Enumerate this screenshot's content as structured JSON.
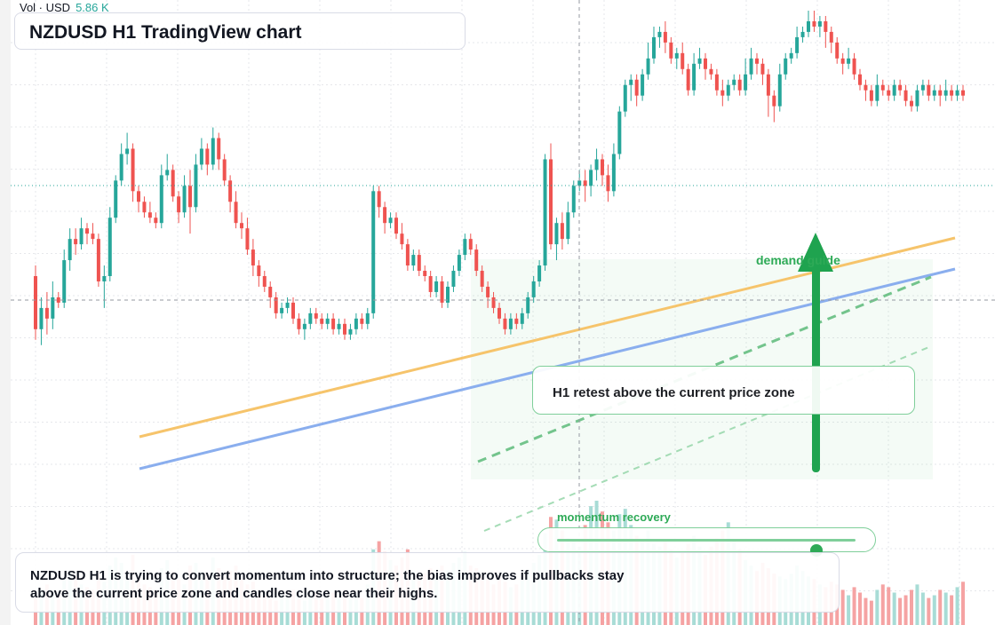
{
  "header": {
    "vol_label": "Vol · USD",
    "vol_value": "5.86 K",
    "title": "NZDUSD H1 TradingView chart"
  },
  "annotations": {
    "retest_label": "H1 retest above the current price zone",
    "demand_label": "demand guide",
    "momentum_label": "momentum recovery",
    "momentum_level": 0.87,
    "note": "NZDUSD H1 is trying to convert momentum into structure; the bias improves if pullbacks stay above the current price zone and candles close near their highs."
  },
  "colors": {
    "up": "#26a69a",
    "down": "#ef5350",
    "up_volume": "#a8dcd6",
    "down_volume": "#f5a3a3",
    "orange_trend": "#f6c46b",
    "blue_trend": "#8aaeee",
    "green_accent": "#2eaa57"
  },
  "chart_data": {
    "type": "candlestick",
    "ylim": [
      0,
      100
    ],
    "candles": [
      [
        50,
        40,
        52,
        38
      ],
      [
        40,
        44,
        46,
        37
      ],
      [
        44,
        42,
        47,
        39
      ],
      [
        42,
        46,
        49,
        40
      ],
      [
        46,
        45,
        47,
        44
      ],
      [
        45,
        53,
        55,
        44
      ],
      [
        53,
        57,
        59,
        51
      ],
      [
        57,
        56,
        59,
        54
      ],
      [
        56,
        59,
        61,
        55
      ],
      [
        59,
        58,
        60,
        56
      ],
      [
        58,
        57,
        60,
        56
      ],
      [
        57,
        49,
        58,
        48
      ],
      [
        49,
        50,
        52,
        44
      ],
      [
        50,
        61,
        63,
        49
      ],
      [
        61,
        68,
        69,
        60
      ],
      [
        68,
        73,
        75,
        67
      ],
      [
        73,
        74,
        77,
        71
      ],
      [
        74,
        66,
        75,
        64
      ],
      [
        66,
        64,
        67,
        62
      ],
      [
        64,
        62,
        65,
        61
      ],
      [
        62,
        61,
        64,
        60
      ],
      [
        61,
        60,
        62,
        59
      ],
      [
        60,
        69,
        71,
        59
      ],
      [
        69,
        70,
        73,
        68
      ],
      [
        70,
        65,
        71,
        64
      ],
      [
        65,
        62,
        66,
        60
      ],
      [
        62,
        67,
        69,
        61
      ],
      [
        67,
        63,
        70,
        58
      ],
      [
        63,
        71,
        73,
        62
      ],
      [
        71,
        74,
        76,
        70
      ],
      [
        74,
        71,
        75,
        69
      ],
      [
        71,
        76,
        78,
        70
      ],
      [
        76,
        72,
        77,
        70
      ],
      [
        72,
        68,
        73,
        67
      ],
      [
        68,
        64,
        69,
        62
      ],
      [
        64,
        60,
        66,
        59
      ],
      [
        60,
        59,
        62,
        57
      ],
      [
        59,
        55,
        61,
        54
      ],
      [
        55,
        52,
        57,
        50
      ],
      [
        52,
        50,
        53,
        48
      ],
      [
        50,
        48,
        51,
        47
      ],
      [
        48,
        46,
        49,
        44
      ],
      [
        46,
        43,
        47,
        42
      ],
      [
        43,
        44,
        45,
        42
      ],
      [
        44,
        45,
        46,
        43
      ],
      [
        45,
        42,
        46,
        41
      ],
      [
        42,
        40,
        43,
        39
      ],
      [
        40,
        41,
        42,
        38
      ],
      [
        41,
        43,
        44,
        40
      ],
      [
        43,
        42,
        44,
        41
      ],
      [
        42,
        41,
        43,
        40
      ],
      [
        41,
        42,
        43,
        40
      ],
      [
        42,
        40,
        43,
        39
      ],
      [
        40,
        41,
        42,
        39
      ],
      [
        41,
        39,
        42,
        38
      ],
      [
        39,
        40,
        41,
        38
      ],
      [
        40,
        42,
        43,
        39
      ],
      [
        42,
        41,
        43,
        40
      ],
      [
        41,
        43,
        44,
        40
      ],
      [
        43,
        66,
        67,
        42
      ],
      [
        66,
        63,
        67,
        61
      ],
      [
        63,
        60,
        64,
        58
      ],
      [
        60,
        61,
        62,
        59
      ],
      [
        61,
        58,
        62,
        57
      ],
      [
        58,
        56,
        60,
        55
      ],
      [
        56,
        52,
        57,
        51
      ],
      [
        52,
        54,
        55,
        51
      ],
      [
        54,
        51,
        55,
        50
      ],
      [
        51,
        50,
        52,
        49
      ],
      [
        50,
        47,
        51,
        46
      ],
      [
        47,
        49,
        50,
        46
      ],
      [
        49,
        45,
        50,
        44
      ],
      [
        45,
        48,
        49,
        44
      ],
      [
        48,
        51,
        52,
        47
      ],
      [
        51,
        54,
        55,
        50
      ],
      [
        54,
        57,
        58,
        53
      ],
      [
        57,
        55,
        58,
        54
      ],
      [
        55,
        51,
        56,
        50
      ],
      [
        51,
        48,
        52,
        47
      ],
      [
        48,
        46,
        49,
        44
      ],
      [
        46,
        44,
        47,
        43
      ],
      [
        44,
        42,
        45,
        41
      ],
      [
        42,
        40,
        43,
        39
      ],
      [
        40,
        42,
        43,
        39
      ],
      [
        42,
        41,
        43,
        40
      ],
      [
        41,
        43,
        44,
        40
      ],
      [
        43,
        46,
        47,
        42
      ],
      [
        46,
        49,
        50,
        45
      ],
      [
        49,
        52,
        53,
        48
      ],
      [
        52,
        72,
        73,
        51
      ],
      [
        72,
        56,
        75,
        55
      ],
      [
        56,
        60,
        61,
        53
      ],
      [
        60,
        57,
        62,
        55
      ],
      [
        57,
        62,
        64,
        56
      ],
      [
        62,
        67,
        68,
        61
      ],
      [
        67,
        68,
        70,
        66
      ],
      [
        68,
        67,
        70,
        64
      ],
      [
        67,
        70,
        71,
        65
      ],
      [
        70,
        72,
        74,
        68
      ],
      [
        72,
        69,
        73,
        67
      ],
      [
        69,
        66,
        71,
        64
      ],
      [
        66,
        73,
        75,
        65
      ],
      [
        73,
        81,
        82,
        72
      ],
      [
        81,
        86,
        87,
        80
      ],
      [
        86,
        87,
        88,
        83
      ],
      [
        87,
        84,
        88,
        82
      ],
      [
        84,
        88,
        89,
        83
      ],
      [
        88,
        91,
        94,
        87
      ],
      [
        91,
        95,
        97,
        90
      ],
      [
        95,
        96,
        97,
        93
      ],
      [
        96,
        94,
        98,
        92
      ],
      [
        94,
        91,
        95,
        90
      ],
      [
        91,
        92,
        93,
        89
      ],
      [
        92,
        89,
        94,
        88
      ],
      [
        89,
        85,
        90,
        84
      ],
      [
        85,
        90,
        92,
        84
      ],
      [
        90,
        91,
        93,
        89
      ],
      [
        91,
        89,
        92,
        87
      ],
      [
        89,
        88,
        90,
        87
      ],
      [
        88,
        85,
        89,
        84
      ],
      [
        85,
        84,
        87,
        82
      ],
      [
        84,
        86,
        87,
        83
      ],
      [
        86,
        87,
        88,
        85
      ],
      [
        87,
        85,
        88,
        84
      ],
      [
        85,
        88,
        91,
        84
      ],
      [
        88,
        91,
        93,
        87
      ],
      [
        91,
        90,
        92,
        88
      ],
      [
        90,
        88,
        91,
        86
      ],
      [
        88,
        84,
        89,
        80
      ],
      [
        84,
        82,
        85,
        79
      ],
      [
        82,
        88,
        90,
        81
      ],
      [
        88,
        91,
        92,
        87
      ],
      [
        91,
        92,
        93,
        90
      ],
      [
        92,
        95,
        97,
        91
      ],
      [
        95,
        96,
        97,
        94
      ],
      [
        96,
        98,
        100,
        95
      ],
      [
        98,
        97,
        100,
        96
      ],
      [
        97,
        98,
        99,
        95
      ],
      [
        98,
        96,
        99,
        93
      ],
      [
        96,
        94,
        97,
        92
      ],
      [
        94,
        91,
        95,
        90
      ],
      [
        91,
        90,
        92,
        88
      ],
      [
        90,
        91,
        93,
        89
      ],
      [
        91,
        88,
        92,
        87
      ],
      [
        88,
        86,
        89,
        85
      ],
      [
        86,
        85,
        87,
        83
      ],
      [
        85,
        83,
        86,
        82
      ],
      [
        83,
        86,
        88,
        82
      ],
      [
        86,
        85,
        87,
        84
      ],
      [
        85,
        84,
        86,
        83
      ],
      [
        84,
        86,
        87,
        83
      ],
      [
        86,
        85,
        87,
        84
      ],
      [
        85,
        83,
        86,
        82
      ],
      [
        83,
        82,
        84,
        81
      ],
      [
        82,
        85,
        86,
        81
      ],
      [
        85,
        86,
        87,
        84
      ],
      [
        86,
        84,
        87,
        83
      ],
      [
        84,
        85,
        86,
        83
      ],
      [
        85,
        84,
        86,
        82
      ],
      [
        84,
        85,
        87,
        83
      ],
      [
        85,
        84,
        86,
        83
      ],
      [
        84,
        85,
        86,
        83
      ],
      [
        85,
        84,
        86,
        83
      ]
    ],
    "volumes": [
      20,
      26,
      30,
      24,
      22,
      34,
      40,
      36,
      30,
      28,
      26,
      38,
      32,
      44,
      50,
      46,
      40,
      52,
      36,
      30,
      28,
      26,
      42,
      48,
      40,
      34,
      30,
      44,
      46,
      40,
      38,
      50,
      42,
      36,
      40,
      44,
      34,
      30,
      32,
      26,
      22,
      20,
      18,
      24,
      22,
      26,
      20,
      18,
      22,
      24,
      20,
      22,
      24,
      20,
      26,
      22,
      24,
      20,
      30,
      56,
      62,
      54,
      48,
      44,
      50,
      56,
      40,
      34,
      38,
      42,
      36,
      44,
      40,
      46,
      50,
      54,
      44,
      42,
      36,
      34,
      30,
      36,
      32,
      28,
      30,
      34,
      40,
      46,
      52,
      68,
      80,
      78,
      70,
      64,
      62,
      58,
      74,
      88,
      92,
      84,
      76,
      70,
      82,
      86,
      74,
      66,
      62,
      70,
      60,
      58,
      62,
      56,
      50,
      54,
      60,
      66,
      58,
      52,
      58,
      64,
      70,
      76,
      62,
      56,
      48,
      44,
      40,
      46,
      42,
      38,
      36,
      34,
      38,
      44,
      40,
      36,
      34,
      30,
      28,
      32,
      30,
      26,
      22,
      28,
      24,
      20,
      18,
      26,
      30,
      28,
      24,
      20,
      22,
      26,
      30,
      24,
      20,
      22,
      26,
      24,
      22,
      28,
      32
    ],
    "trendlines": [
      {
        "label": "orange",
        "from": [
          0.0,
          57
        ],
        "to": [
          1.0,
          84
        ]
      },
      {
        "label": "blue",
        "from": [
          0.0,
          52
        ],
        "to": [
          1.0,
          80
        ]
      }
    ]
  }
}
